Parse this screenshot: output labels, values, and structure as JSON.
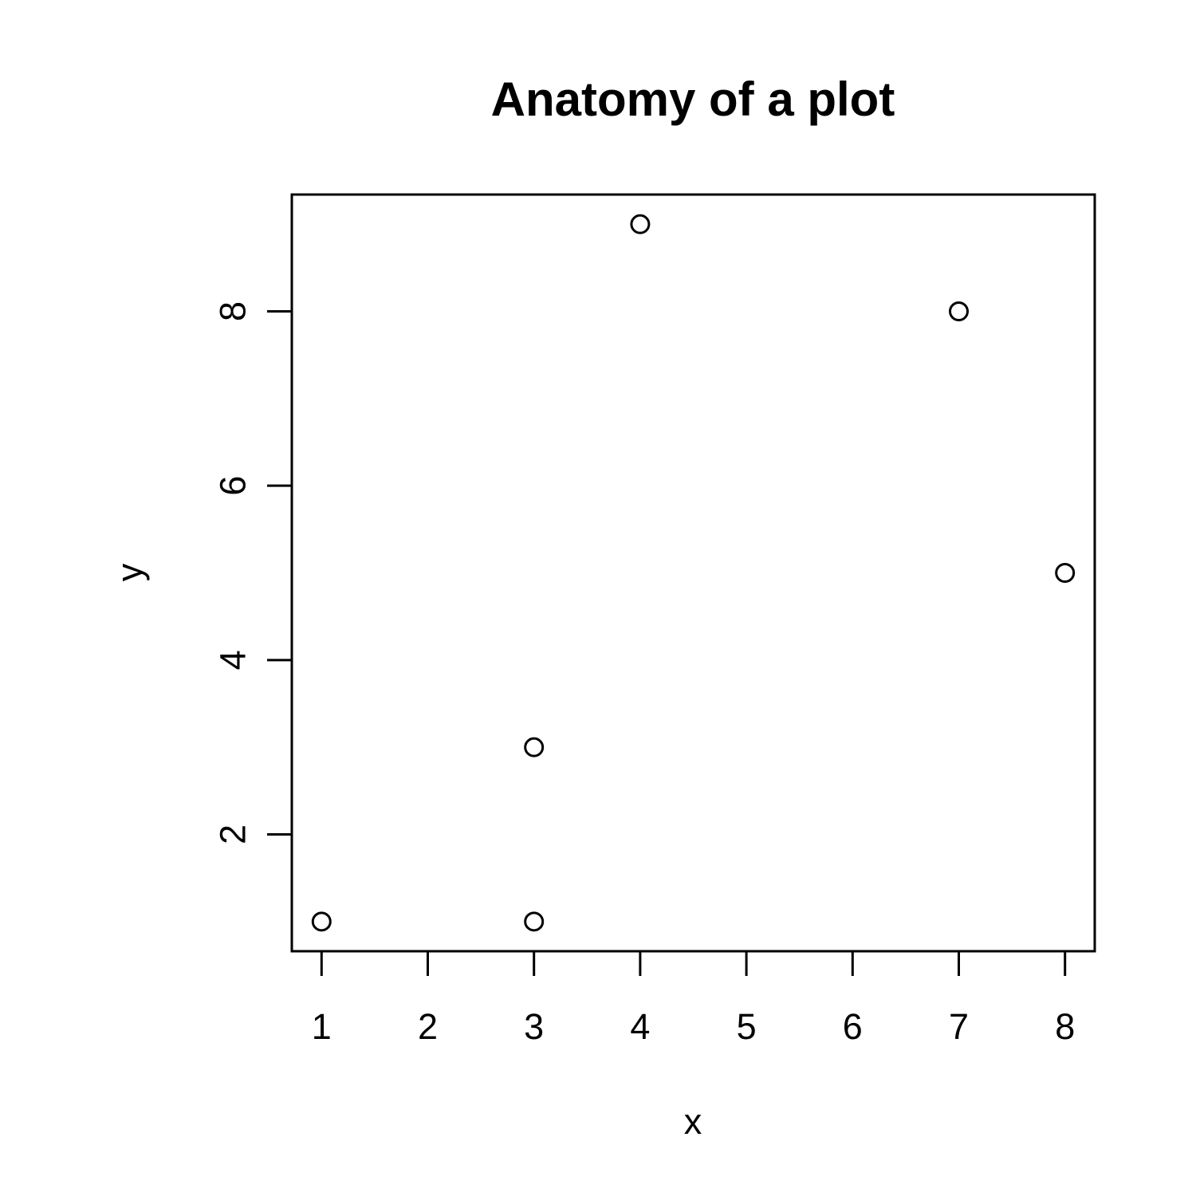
{
  "chart_data": {
    "type": "scatter",
    "title": "Anatomy of a plot",
    "xlabel": "x",
    "ylabel": "y",
    "xlim": [
      0.72,
      8.28
    ],
    "ylim": [
      0.66,
      9.34
    ],
    "xticks": [
      1,
      2,
      3,
      4,
      5,
      6,
      7,
      8
    ],
    "yticks": [
      2,
      4,
      6,
      8
    ],
    "grid": false,
    "marker": "open-circle",
    "color": "#000000",
    "points": [
      {
        "x": 1,
        "y": 1
      },
      {
        "x": 3,
        "y": 1
      },
      {
        "x": 3,
        "y": 3
      },
      {
        "x": 4,
        "y": 9
      },
      {
        "x": 7,
        "y": 8
      },
      {
        "x": 8,
        "y": 5
      }
    ]
  }
}
